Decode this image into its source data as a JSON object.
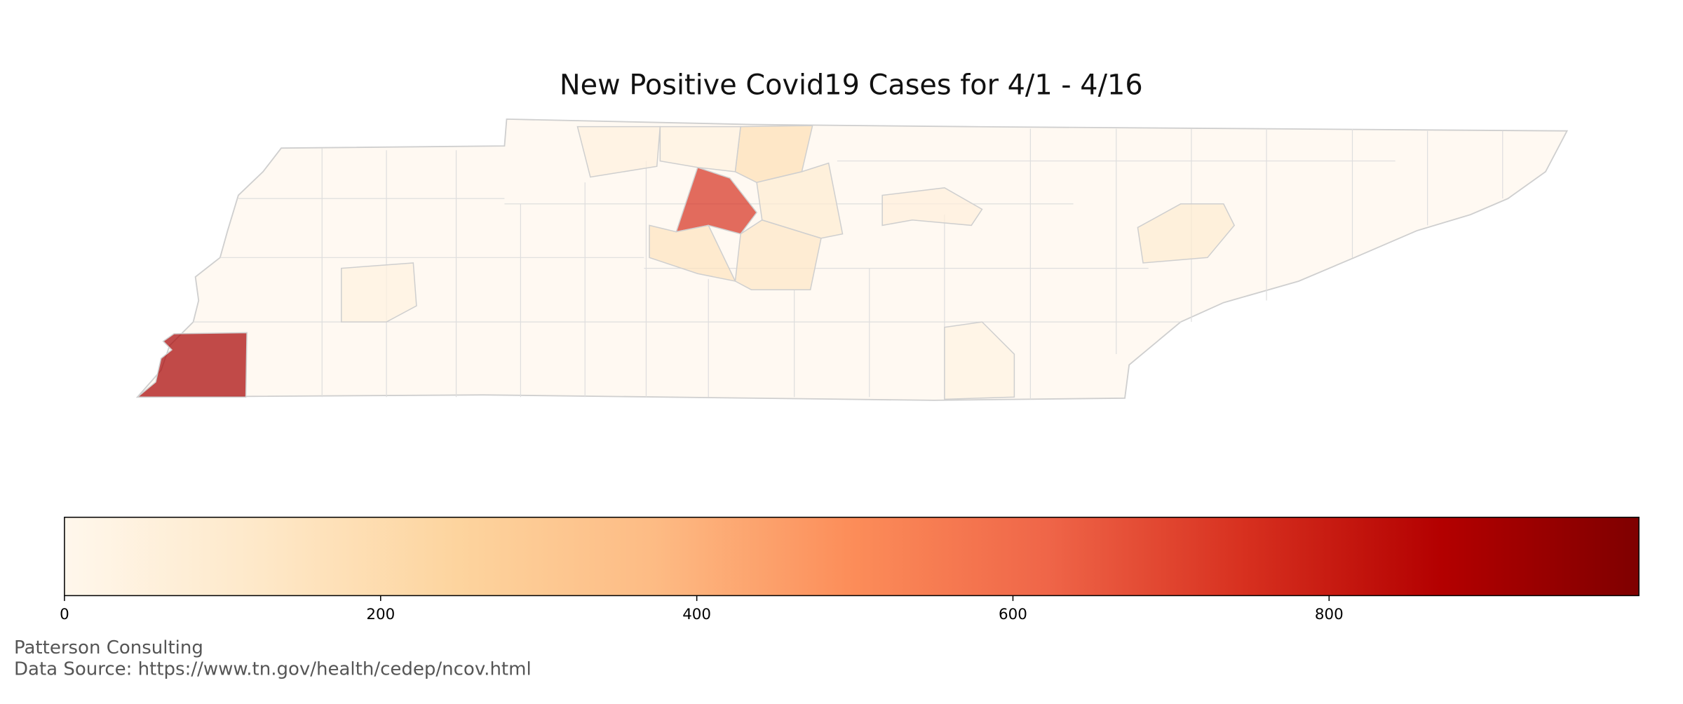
{
  "chart_data": {
    "type": "choropleth",
    "title": "New Positive Covid19 Cases for 4/1 - 4/16",
    "values": [
      900,
      750,
      180,
      150,
      130,
      90,
      90,
      40,
      50,
      45,
      60,
      35
    ],
    "colormap": [
      "#fff7ec",
      "#fee8c8",
      "#fdd49e",
      "#fdbb84",
      "#fc8d59",
      "#ef6548",
      "#d7301f",
      "#b30000",
      "#7f0000"
    ],
    "xlim": [
      0,
      996
    ],
    "xticks": [
      0,
      200,
      400,
      600,
      800
    ],
    "annotations": [
      "Patterson Consulting",
      "Data Source: https://www.tn.gov/health/cedep/ncov.html"
    ]
  }
}
